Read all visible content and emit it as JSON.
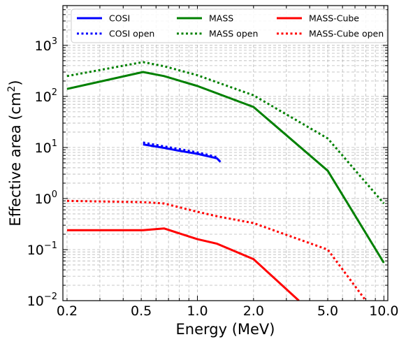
{
  "chart_data": {
    "type": "line",
    "xlabel": "Energy (MeV)",
    "ylabel": "Effective area (cm",
    "ylabel_sup": "2",
    "ylabel_close": ")",
    "x_scale": "log",
    "y_scale": "log",
    "xlim": [
      0.19,
      10.5
    ],
    "ylim": [
      0.01,
      6000
    ],
    "grid": true,
    "legend_position": "top",
    "x_ticks": [
      {
        "value": 0.2,
        "label": "0.2"
      },
      {
        "value": 0.5,
        "label": "0.5"
      },
      {
        "value": 1.0,
        "label": "1.0"
      },
      {
        "value": 2.0,
        "label": "2.0"
      },
      {
        "value": 5.0,
        "label": "5.0"
      },
      {
        "value": 10.0,
        "label": "10.0"
      }
    ],
    "y_ticks": [
      {
        "value": 0.01,
        "base": "10",
        "exp": "−2"
      },
      {
        "value": 0.1,
        "base": "10",
        "exp": "−1"
      },
      {
        "value": 1,
        "base": "10",
        "exp": "0"
      },
      {
        "value": 10,
        "base": "10",
        "exp": "1"
      },
      {
        "value": 100,
        "base": "10",
        "exp": "2"
      },
      {
        "value": 1000,
        "base": "10",
        "exp": "3"
      }
    ],
    "series": [
      {
        "name": "COSI",
        "color": "#0000ff",
        "style": "solid",
        "x": [
          0.511,
          0.662,
          0.8,
          1.0,
          1.17,
          1.275,
          1.33
        ],
        "y": [
          11.5,
          9.8,
          8.6,
          7.5,
          6.6,
          6.1,
          5.2
        ]
      },
      {
        "name": "COSI open",
        "color": "#0000ff",
        "style": "dotted",
        "x": [
          0.511,
          0.662,
          0.8,
          1.0,
          1.17,
          1.275
        ],
        "y": [
          12.5,
          10.5,
          9.3,
          8.0,
          7.0,
          6.4
        ]
      },
      {
        "name": "MASS",
        "color": "#008000",
        "style": "solid",
        "x": [
          0.2,
          0.511,
          0.662,
          1.0,
          2.0,
          5.0,
          10.0
        ],
        "y": [
          140,
          300,
          250,
          160,
          62,
          3.5,
          0.055
        ]
      },
      {
        "name": "MASS open",
        "color": "#008000",
        "style": "dotted",
        "x": [
          0.2,
          0.511,
          0.662,
          1.0,
          2.0,
          5.0,
          10.0
        ],
        "y": [
          250,
          470,
          390,
          260,
          105,
          15,
          0.8
        ]
      },
      {
        "name": "MASS-Cube",
        "color": "#ff0000",
        "style": "solid",
        "x": [
          0.2,
          0.511,
          0.662,
          1.0,
          1.275,
          2.0,
          3.5
        ],
        "y": [
          0.24,
          0.24,
          0.26,
          0.16,
          0.13,
          0.065,
          0.01
        ]
      },
      {
        "name": "MASS-Cube open",
        "color": "#ff0000",
        "style": "dotted",
        "x": [
          0.2,
          0.511,
          0.662,
          1.0,
          1.275,
          2.0,
          5.0,
          8.0
        ],
        "y": [
          0.9,
          0.85,
          0.8,
          0.55,
          0.45,
          0.33,
          0.1,
          0.01
        ]
      }
    ]
  }
}
